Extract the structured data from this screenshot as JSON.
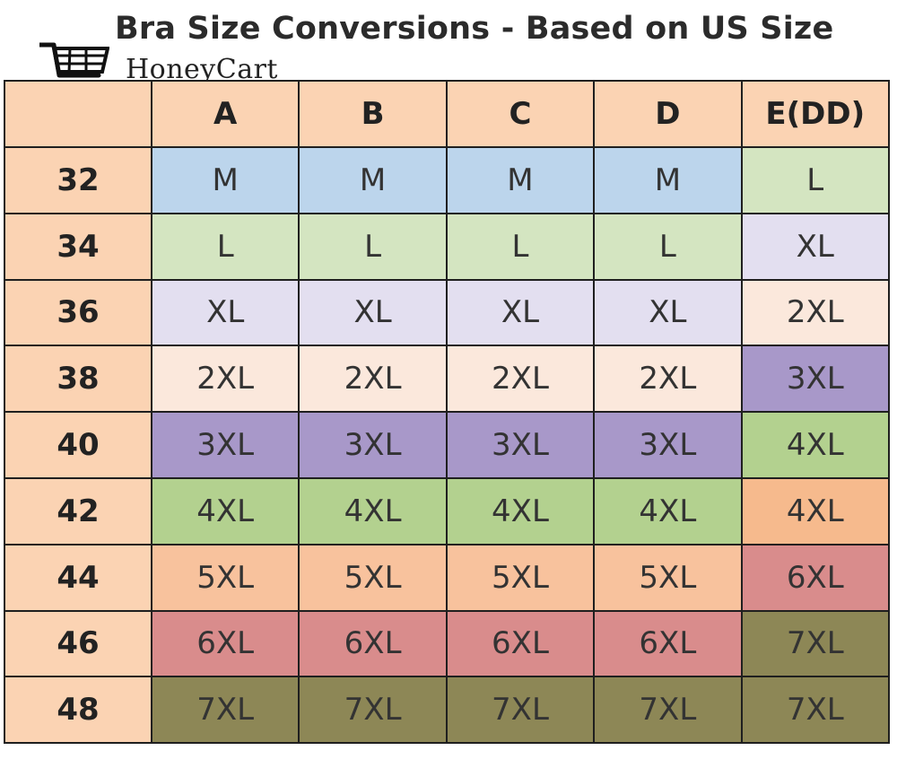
{
  "title": "Bra Size Conversions - Based on US Size",
  "brand": {
    "name": "HoneyCart",
    "icon": "shopping-cart-icon"
  },
  "colors": {
    "header": "#fbd3b3",
    "M": "#bcd5ec",
    "L": "#d4e5c1",
    "XL": "#e3dff0",
    "2XL": "#fbe8dc",
    "3XL": "#a898c9",
    "4XL": "#b3d18f",
    "4XL_alt": "#f6ba8d",
    "5XL": "#f8c29d",
    "6XL": "#d98c8c",
    "7XL": "#8d8756"
  },
  "table": {
    "corner": "",
    "columns": [
      "A",
      "B",
      "C",
      "D",
      "E(DD)"
    ],
    "rows": [
      {
        "band": "32",
        "cells": [
          {
            "v": "M",
            "c": "M"
          },
          {
            "v": "M",
            "c": "M"
          },
          {
            "v": "M",
            "c": "M"
          },
          {
            "v": "M",
            "c": "M"
          },
          {
            "v": "L",
            "c": "L"
          }
        ]
      },
      {
        "band": "34",
        "cells": [
          {
            "v": "L",
            "c": "L"
          },
          {
            "v": "L",
            "c": "L"
          },
          {
            "v": "L",
            "c": "L"
          },
          {
            "v": "L",
            "c": "L"
          },
          {
            "v": "XL",
            "c": "XL"
          }
        ]
      },
      {
        "band": "36",
        "cells": [
          {
            "v": "XL",
            "c": "XL"
          },
          {
            "v": "XL",
            "c": "XL"
          },
          {
            "v": "XL",
            "c": "XL"
          },
          {
            "v": "XL",
            "c": "XL"
          },
          {
            "v": "2XL",
            "c": "2XL"
          }
        ]
      },
      {
        "band": "38",
        "cells": [
          {
            "v": "2XL",
            "c": "2XL"
          },
          {
            "v": "2XL",
            "c": "2XL"
          },
          {
            "v": "2XL",
            "c": "2XL"
          },
          {
            "v": "2XL",
            "c": "2XL"
          },
          {
            "v": "3XL",
            "c": "3XL"
          }
        ]
      },
      {
        "band": "40",
        "cells": [
          {
            "v": "3XL",
            "c": "3XL"
          },
          {
            "v": "3XL",
            "c": "3XL"
          },
          {
            "v": "3XL",
            "c": "3XL"
          },
          {
            "v": "3XL",
            "c": "3XL"
          },
          {
            "v": "4XL",
            "c": "4XL"
          }
        ]
      },
      {
        "band": "42",
        "cells": [
          {
            "v": "4XL",
            "c": "4XL"
          },
          {
            "v": "4XL",
            "c": "4XL"
          },
          {
            "v": "4XL",
            "c": "4XL"
          },
          {
            "v": "4XL",
            "c": "4XL"
          },
          {
            "v": "4XL",
            "c": "4XL_alt"
          }
        ]
      },
      {
        "band": "44",
        "cells": [
          {
            "v": "5XL",
            "c": "5XL"
          },
          {
            "v": "5XL",
            "c": "5XL"
          },
          {
            "v": "5XL",
            "c": "5XL"
          },
          {
            "v": "5XL",
            "c": "5XL"
          },
          {
            "v": "6XL",
            "c": "6XL"
          }
        ]
      },
      {
        "band": "46",
        "cells": [
          {
            "v": "6XL",
            "c": "6XL"
          },
          {
            "v": "6XL",
            "c": "6XL"
          },
          {
            "v": "6XL",
            "c": "6XL"
          },
          {
            "v": "6XL",
            "c": "6XL"
          },
          {
            "v": "7XL",
            "c": "7XL"
          }
        ]
      },
      {
        "band": "48",
        "cells": [
          {
            "v": "7XL",
            "c": "7XL"
          },
          {
            "v": "7XL",
            "c": "7XL"
          },
          {
            "v": "7XL",
            "c": "7XL"
          },
          {
            "v": "7XL",
            "c": "7XL"
          },
          {
            "v": "7XL",
            "c": "7XL"
          }
        ]
      }
    ]
  }
}
